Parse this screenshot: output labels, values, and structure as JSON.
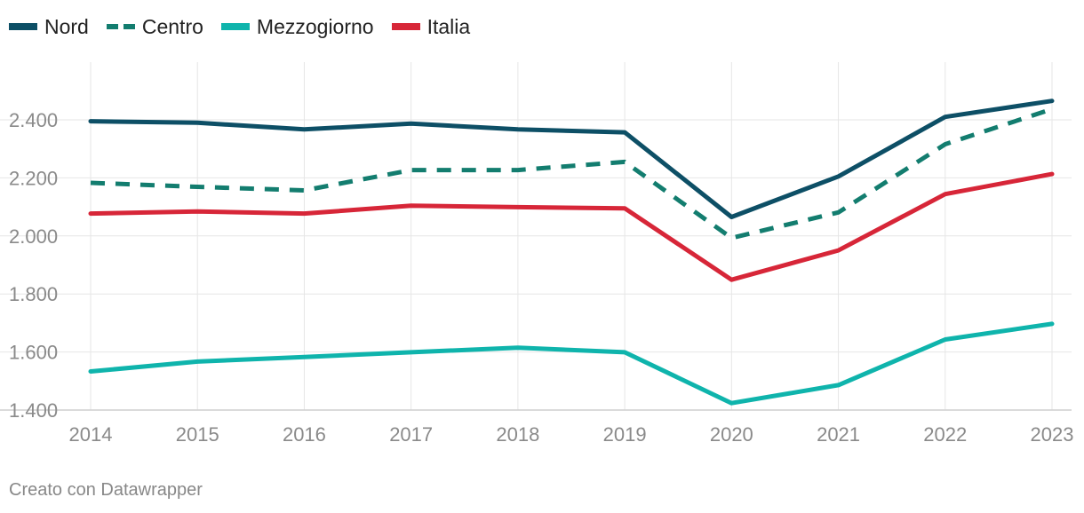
{
  "legend": [
    {
      "name": "Nord",
      "color": "#0d4f66",
      "style": "solid"
    },
    {
      "name": "Centro",
      "color": "#137d6f",
      "style": "dashed"
    },
    {
      "name": "Mezzogiorno",
      "color": "#0fb4ac",
      "style": "solid"
    },
    {
      "name": "Italia",
      "color": "#d72638",
      "style": "solid"
    }
  ],
  "footer": "Creato con Datawrapper",
  "chart_data": {
    "type": "line",
    "title": "",
    "xlabel": "",
    "ylabel": "",
    "x": [
      "2014",
      "2015",
      "2016",
      "2017",
      "2018",
      "2019",
      "2020",
      "2021",
      "2022",
      "2023"
    ],
    "ylim": [
      1400,
      2600
    ],
    "yticks": [
      1400,
      1600,
      1800,
      2000,
      2200,
      2400
    ],
    "ytick_labels": [
      "1.400",
      "1.600",
      "1.800",
      "2.000",
      "2.200",
      "2.400"
    ],
    "grid": true,
    "legend_position": "top-left",
    "series": [
      {
        "name": "Nord",
        "color": "#0d4f66",
        "style": "solid",
        "values": [
          2395,
          2390,
          2367,
          2387,
          2367,
          2357,
          2065,
          2205,
          2410,
          2465
        ]
      },
      {
        "name": "Centro",
        "color": "#137d6f",
        "style": "dashed",
        "values": [
          2183,
          2169,
          2157,
          2227,
          2227,
          2255,
          1993,
          2081,
          2316,
          2437
        ]
      },
      {
        "name": "Mezzogiorno",
        "color": "#0fb4ac",
        "style": "solid",
        "values": [
          1533,
          1567,
          1583,
          1599,
          1615,
          1599,
          1424,
          1486,
          1643,
          1697
        ]
      },
      {
        "name": "Italia",
        "color": "#d72638",
        "style": "solid",
        "values": [
          2077,
          2084,
          2077,
          2104,
          2099,
          2095,
          1849,
          1950,
          2144,
          2213
        ]
      }
    ]
  }
}
